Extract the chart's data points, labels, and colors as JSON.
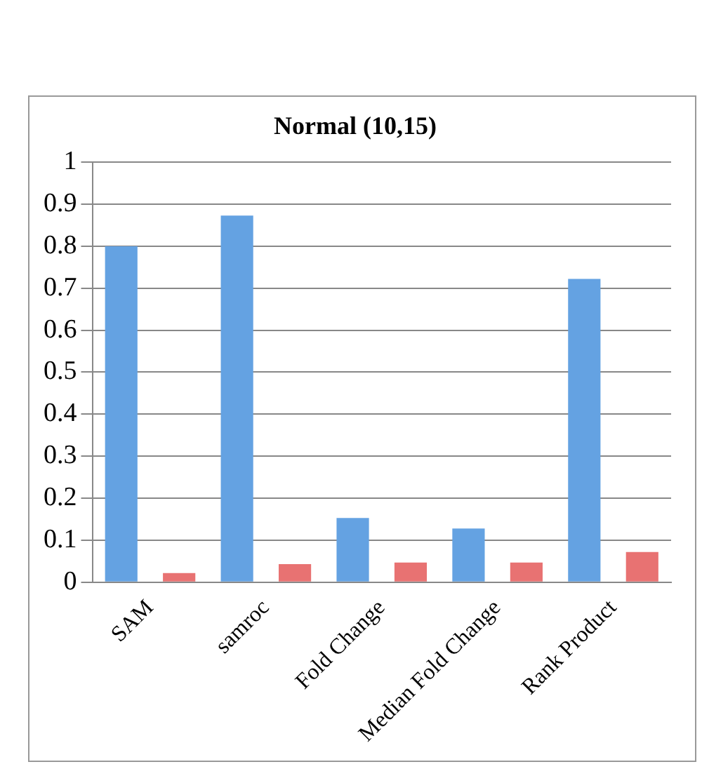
{
  "chart_data": {
    "type": "bar",
    "title": "Normal (10,15)",
    "categories": [
      "SAM",
      "samroc",
      "Fold Change",
      "Median Fold Change",
      "Rank Product"
    ],
    "series": [
      {
        "color": "#64a2e2",
        "values": [
          0.8,
          0.873,
          0.153,
          0.128,
          0.722
        ]
      },
      {
        "color": "#e87272",
        "values": [
          0.022,
          0.043,
          0.047,
          0.047,
          0.072
        ]
      }
    ],
    "ylim": [
      0,
      1
    ],
    "yticks": [
      0,
      0.1,
      0.2,
      0.3,
      0.4,
      0.5,
      0.6,
      0.7,
      0.8,
      0.9,
      1
    ],
    "grid": "y",
    "legend": false
  }
}
